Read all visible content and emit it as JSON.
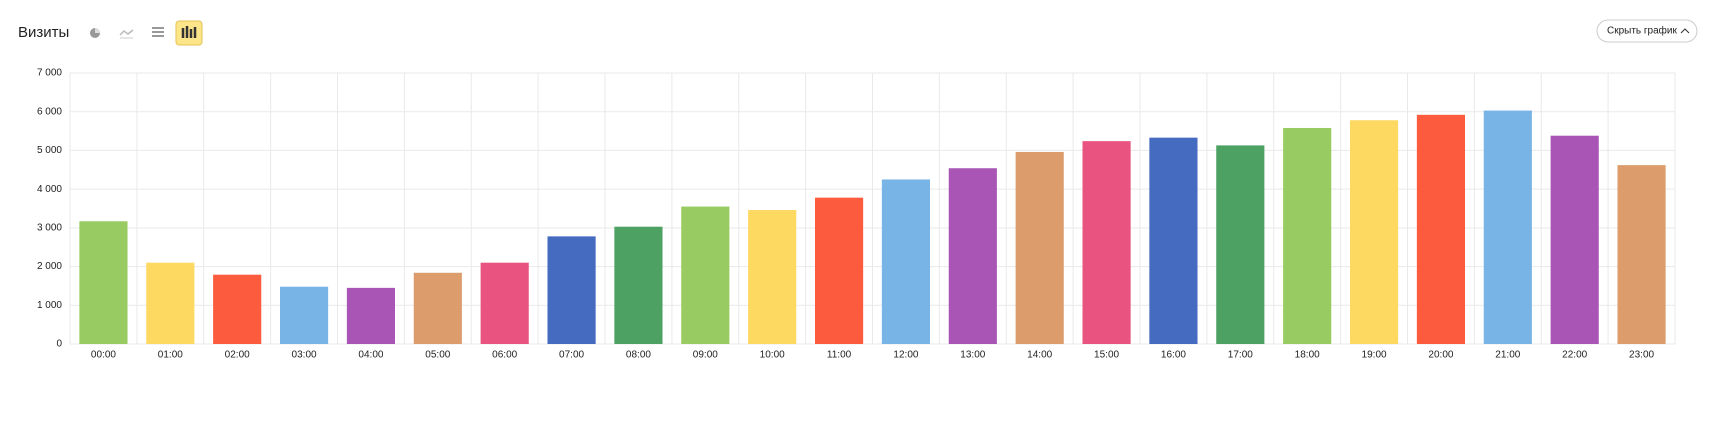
{
  "chart_data": {
    "type": "bar",
    "title": "Визиты",
    "categories": [
      "00:00",
      "01:00",
      "02:00",
      "03:00",
      "04:00",
      "05:00",
      "06:00",
      "07:00",
      "08:00",
      "09:00",
      "10:00",
      "11:00",
      "12:00",
      "13:00",
      "14:00",
      "15:00",
      "16:00",
      "17:00",
      "18:00",
      "19:00",
      "20:00",
      "21:00",
      "22:00",
      "23:00"
    ],
    "values": [
      3170,
      2100,
      1790,
      1480,
      1450,
      1840,
      2100,
      2780,
      3030,
      3550,
      3460,
      3780,
      4250,
      4540,
      4960,
      5240,
      5330,
      5130,
      5580,
      5780,
      5920,
      6030,
      5380,
      4620
    ],
    "colors": [
      "#98cb62",
      "#fdd961",
      "#fd5b3d",
      "#79b4e6",
      "#a855b6",
      "#dc9c6b",
      "#e8547f",
      "#446bbf",
      "#4ca163"
    ],
    "ylim": [
      0,
      7000
    ],
    "yticks": [
      0,
      {
        "value": 1000,
        "label": "1 000"
      },
      {
        "value": 2000,
        "label": "2 000"
      },
      {
        "value": 3000,
        "label": "3 000"
      },
      {
        "value": 4000,
        "label": "4 000"
      },
      {
        "value": 5000,
        "label": "5 000"
      },
      {
        "value": 6000,
        "label": "6 000"
      },
      {
        "value": 7000,
        "label": "7 000"
      }
    ],
    "grid": true
  },
  "ui": {
    "hide_button": "Скрыть график"
  }
}
